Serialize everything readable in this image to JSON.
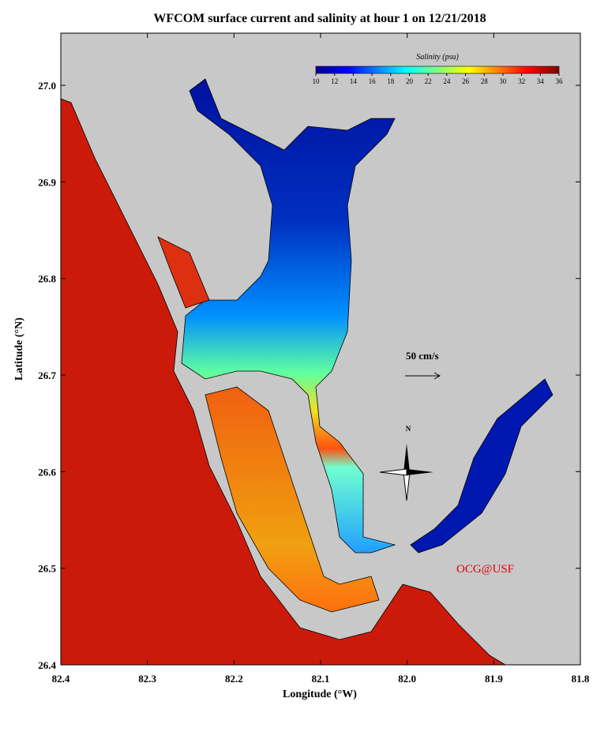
{
  "title": "WFCOM surface current and salinity at hour 1 on 12/21/2018",
  "x_axis": {
    "label": "Longitude (°W)",
    "lim": [
      82.4,
      81.8
    ],
    "ticks": [
      82.4,
      82.3,
      82.2,
      82.1,
      {
        "value": 82.0,
        "label": "82.0"
      },
      81.9,
      81.8
    ]
  },
  "y_axis": {
    "label": "Latitude (°N)",
    "lim": [
      26.4,
      27.054
    ],
    "ticks": [
      26.4,
      26.5,
      26.6,
      26.7,
      26.8,
      26.9,
      {
        "value": 27.0,
        "label": "27.0"
      }
    ]
  },
  "colorbar": {
    "label": "Salinity (psu)",
    "lim": [
      10,
      36
    ],
    "ticks": [
      10,
      12,
      14,
      16,
      18,
      20,
      22,
      24,
      26,
      28,
      30,
      32,
      34,
      36
    ]
  },
  "scale_label": "50 cm/s",
  "north_label": "N",
  "credit": "OCG@USF"
}
